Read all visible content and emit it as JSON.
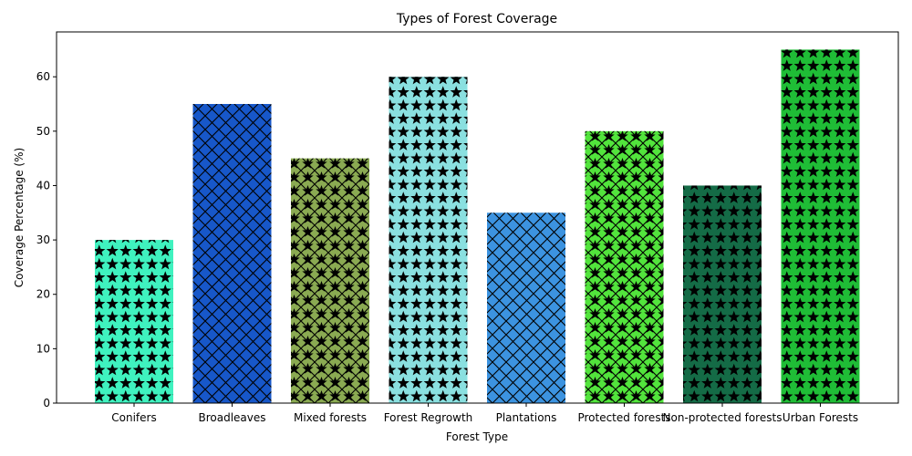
{
  "chart_data": {
    "type": "bar",
    "title": "Types of Forest Coverage",
    "xlabel": "Forest Type",
    "ylabel": "Coverage Percentage (%)",
    "ylim": [
      0,
      68.25
    ],
    "yticks": [
      0,
      10,
      20,
      30,
      40,
      50,
      60
    ],
    "categories": [
      "Conifers",
      "Broadleaves",
      "Mixed forests",
      "Forest Regrowth",
      "Plantations",
      "Protected forests",
      "Non-protected forests",
      "Urban Forests"
    ],
    "values": [
      30,
      55,
      45,
      60,
      35,
      50,
      40,
      65
    ],
    "colors": [
      "#3ff2bf",
      "#1757c9",
      "#8aaa52",
      "#8ae0e0",
      "#3c93e0",
      "#52e43c",
      "#146b46",
      "#1fbd36"
    ],
    "patterns": [
      "stars",
      "cross",
      "cross-stars",
      "stars",
      "cross",
      "cross-stars",
      "stars",
      "stars"
    ],
    "grid": false,
    "legend": "none"
  }
}
